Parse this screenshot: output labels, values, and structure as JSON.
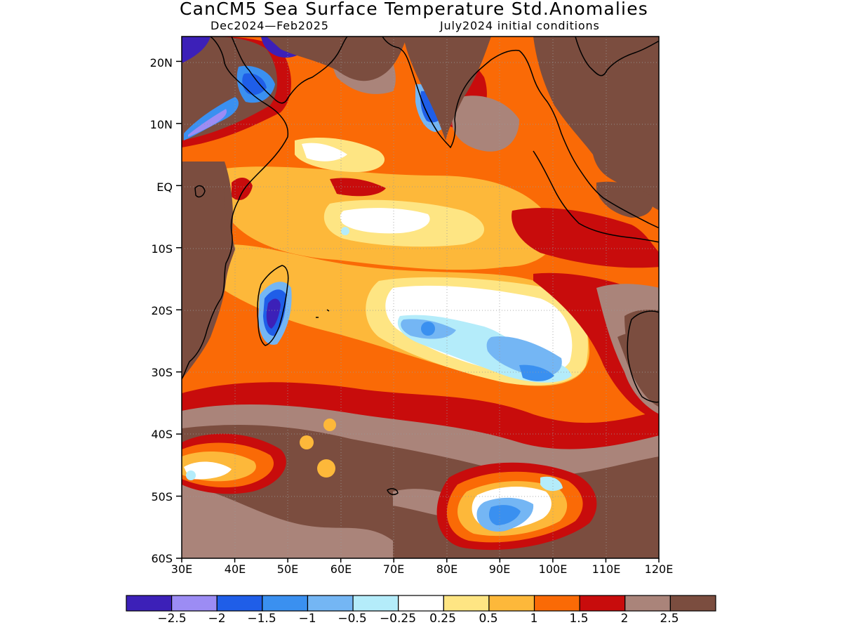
{
  "title": "CanCM5 Sea Surface Temperature Std.Anomalies",
  "season": "Dec2024—Feb2025",
  "init": "July2024 initial conditions",
  "axes": {
    "lat_labels": [
      "20N",
      "10N",
      "EQ",
      "10S",
      "20S",
      "30S",
      "40S",
      "50S",
      "60S"
    ],
    "lon_labels": [
      "30E",
      "40E",
      "50E",
      "60E",
      "70E",
      "80E",
      "90E",
      "100E",
      "110E",
      "120E"
    ],
    "lat_range": [
      -60,
      24
    ],
    "lon_range": [
      30,
      120
    ],
    "grid": "dotted"
  },
  "colorbar": {
    "colors": [
      "#3c20b8",
      "#9c8cf4",
      "#1f5ee8",
      "#3a90f0",
      "#74b6f4",
      "#b4ecfa",
      "#ffffff",
      "#fee583",
      "#fdb83a",
      "#fa6a06",
      "#c80c0c",
      "#aa847a",
      "#7b4d3f"
    ],
    "labels": [
      "−2.5",
      "−2",
      "−1.5",
      "−1",
      "−0.5",
      "−0.25",
      "0.25",
      "0.5",
      "1",
      "1.5",
      "2",
      "2.5"
    ]
  },
  "colors": {
    "land": "#7b4d3f",
    "coast": "#000000",
    "frame": "#000000"
  }
}
